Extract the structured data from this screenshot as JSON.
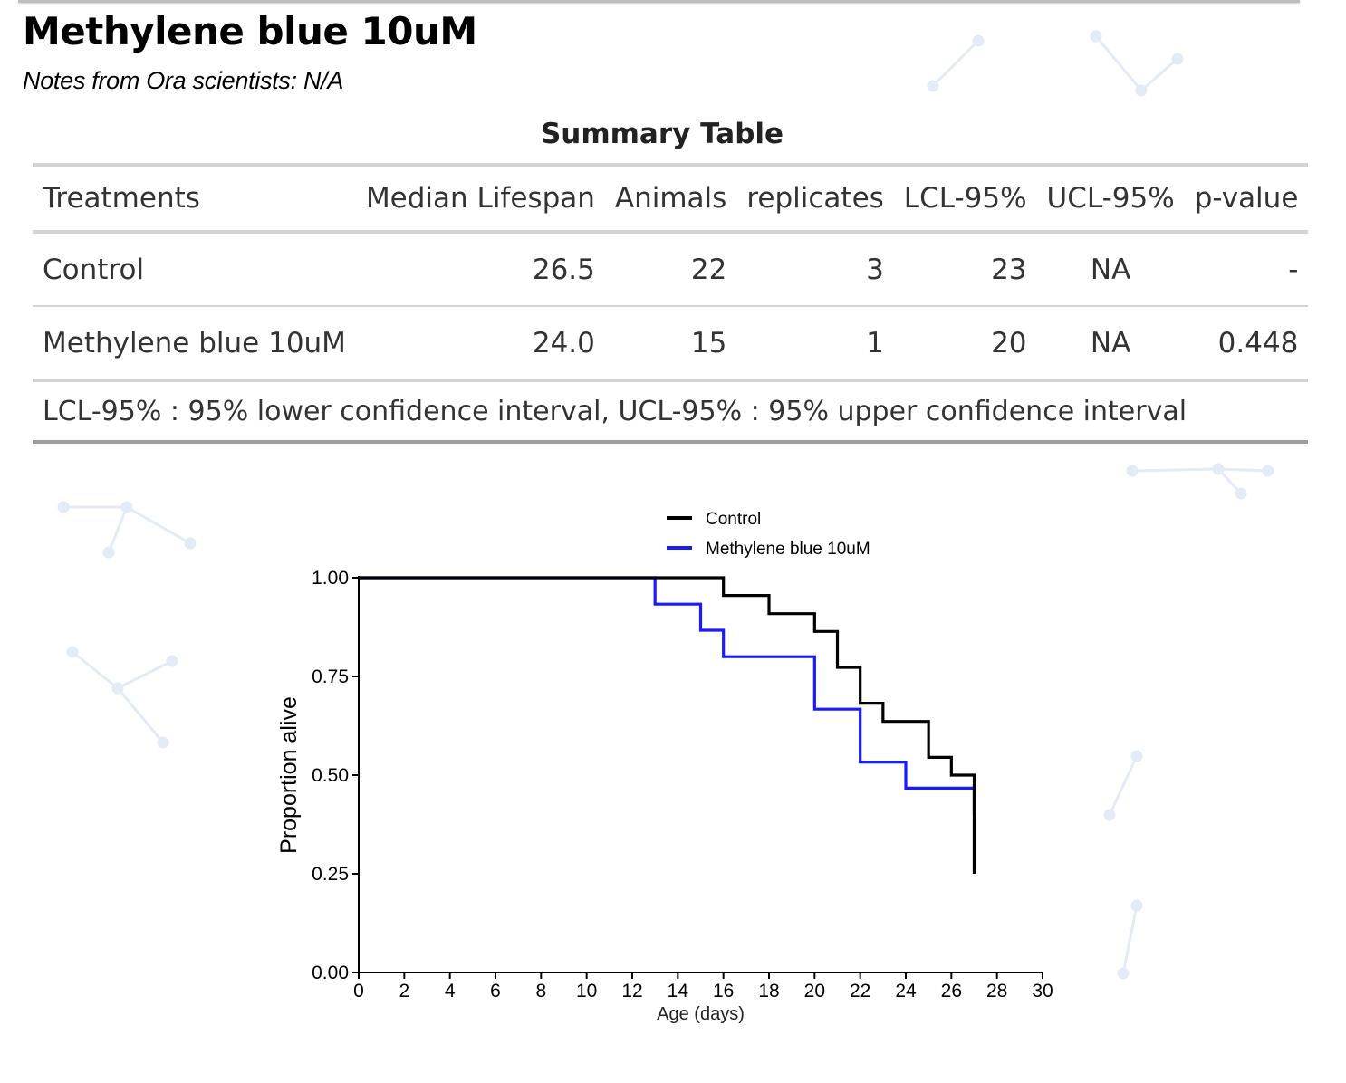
{
  "page": {
    "title": "Methylene blue 10uM",
    "notes": "Notes from Ora scientists: N/A"
  },
  "summary_table": {
    "title": "Summary Table",
    "columns": [
      "Treatments",
      "Median Lifespan",
      "Animals",
      "replicates",
      "LCL-95%",
      "UCL-95%",
      "p-value"
    ],
    "rows": [
      {
        "treatment": "Control",
        "median": "26.5",
        "animals": "22",
        "replicates": "3",
        "lcl": "23",
        "ucl": "NA",
        "p": "-"
      },
      {
        "treatment": "Methylene blue 10uM",
        "median": "24.0",
        "animals": "15",
        "replicates": "1",
        "lcl": "20",
        "ucl": "NA",
        "p": "0.448"
      }
    ],
    "footnote": "LCL-95% : 95% lower confidence interval, UCL-95% : 95% upper confidence interval"
  },
  "chart_data": {
    "type": "line",
    "subtype": "kaplan-meier step",
    "xlabel": "Age (days)",
    "ylabel": "Proportion alive",
    "xlim": [
      0,
      30
    ],
    "ylim": [
      0,
      1
    ],
    "xticks": [
      "0",
      "2",
      "4",
      "6",
      "8",
      "10",
      "12",
      "14",
      "16",
      "18",
      "20",
      "22",
      "24",
      "26",
      "28",
      "30"
    ],
    "yticks": [
      "0.00",
      "0.25",
      "0.50",
      "0.75",
      "1.00"
    ],
    "legend_position": "top",
    "series": [
      {
        "name": "Control",
        "color": "#000000",
        "x": [
          0,
          16,
          18,
          20,
          21,
          22,
          23,
          25,
          26,
          27,
          27
        ],
        "y": [
          1.0,
          0.955,
          0.909,
          0.864,
          0.773,
          0.682,
          0.636,
          0.545,
          0.5,
          0.5,
          0.25
        ]
      },
      {
        "name": "Methylene blue 10uM",
        "color": "#1a1aff",
        "x": [
          0,
          13,
          15,
          16,
          20,
          22,
          24,
          27,
          27
        ],
        "y": [
          1.0,
          0.933,
          0.867,
          0.8,
          0.667,
          0.533,
          0.467,
          0.467,
          0.4
        ]
      }
    ]
  }
}
